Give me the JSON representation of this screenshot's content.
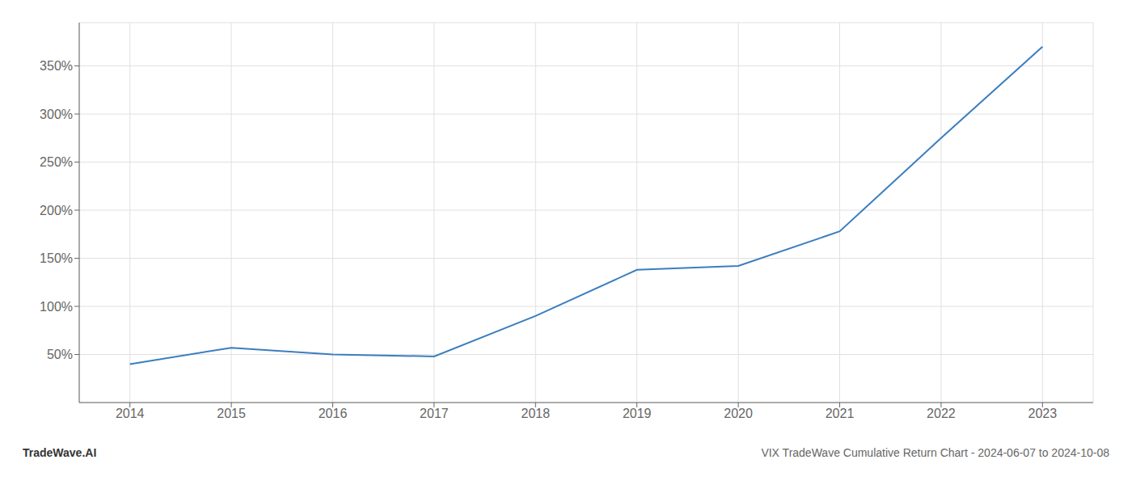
{
  "chart_data": {
    "type": "line",
    "title": "VIX TradeWave Cumulative Return Chart - 2024-06-07 to 2024-10-08",
    "annotations": [
      "TradeWave.AI"
    ],
    "x": [
      2014,
      2015,
      2016,
      2017,
      2018,
      2019,
      2020,
      2021,
      2022,
      2023
    ],
    "values": [
      40,
      57,
      50,
      48,
      90,
      138,
      142,
      178,
      275,
      370
    ],
    "color": "#3a7ebf",
    "xlim": [
      2013.5,
      2023.5
    ],
    "xticks": [
      2014,
      2015,
      2016,
      2017,
      2018,
      2019,
      2020,
      2021,
      2022,
      2023
    ],
    "ylim": [
      0,
      395
    ],
    "yticks": [
      {
        "value": 50,
        "label": "50%"
      },
      {
        "value": 100,
        "label": "100%"
      },
      {
        "value": 150,
        "label": "150%"
      },
      {
        "value": 200,
        "label": "200%"
      },
      {
        "value": 250,
        "label": "250%"
      },
      {
        "value": 300,
        "label": "300%"
      },
      {
        "value": 350,
        "label": "350%"
      }
    ],
    "grid": true
  }
}
